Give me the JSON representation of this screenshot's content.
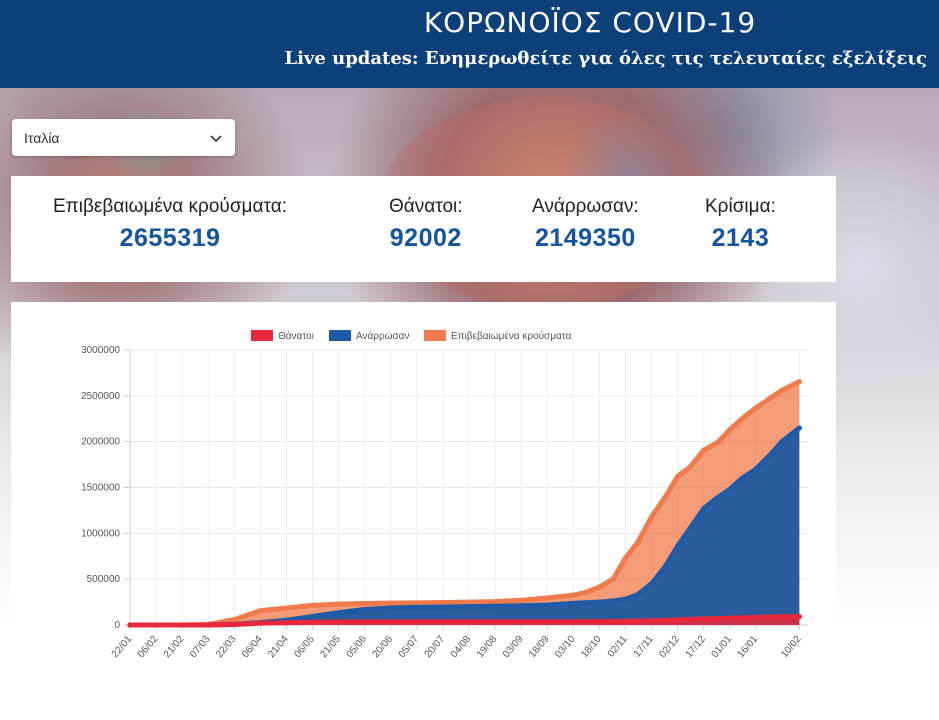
{
  "header": {
    "title": "ΚΟΡΩΝΟΪΟΣ COVID-19",
    "subtitle": "Live updates: Ενημερωθείτε για όλες τις τελευταίες εξελίξεις"
  },
  "country_select": {
    "value": "Ιταλία",
    "icon": "chevron-down-icon"
  },
  "stats": {
    "confirmed_label": "Επιβεβαιωμένα κρούσματα:",
    "confirmed_value": "2655319",
    "deaths_label": "Θάνατοι:",
    "deaths_value": "92002",
    "recovered_label": "Ανάρρωσαν:",
    "recovered_value": "2149350",
    "critical_label": "Κρίσιμα:",
    "critical_value": "2143"
  },
  "colors": {
    "header_bg": "#0d3f78",
    "value_blue": "#1454a0",
    "deaths": "#e8283a",
    "recovered": "#1f5aa6",
    "confirmed": "#f07a4b"
  },
  "chart_data": {
    "type": "area",
    "legend": [
      "Θάνατοι",
      "Ανάρρωσαν",
      "Επιβεβαιωμένα κρούσματα"
    ],
    "ylim": [
      0,
      3000000
    ],
    "yticks": [
      "3000000",
      "2500000",
      "2000000",
      "1500000",
      "1000000",
      "500000",
      "0"
    ],
    "x_tick_labels": [
      "22/01",
      "06/02",
      "21/02",
      "07/03",
      "22/03",
      "06/04",
      "21/04",
      "06/05",
      "21/05",
      "05/06",
      "20/06",
      "05/07",
      "20/07",
      "04/08",
      "19/08",
      "03/09",
      "18/09",
      "03/10",
      "18/10",
      "02/11",
      "17/11",
      "02/12",
      "17/12",
      "01/01",
      "16/01",
      "10/02"
    ],
    "x_days": [
      0,
      15,
      30,
      45,
      60,
      75,
      90,
      105,
      120,
      135,
      150,
      165,
      180,
      195,
      210,
      225,
      240,
      255,
      270,
      285,
      300,
      315,
      330,
      345,
      360,
      385
    ],
    "series": [
      {
        "name": "Επιβεβαιωμένα κρούσματα",
        "x": [
          0,
          30,
          45,
          60,
          75,
          90,
          105,
          120,
          135,
          150,
          165,
          180,
          195,
          210,
          225,
          240,
          255,
          262,
          270,
          278,
          285,
          292,
          300,
          308,
          315,
          322,
          330,
          338,
          345,
          352,
          360,
          368,
          375,
          385
        ],
        "values": [
          0,
          20,
          5883,
          59138,
          156363,
          183957,
          214457,
          227364,
          234013,
          238159,
          241611,
          245032,
          249204,
          255278,
          269214,
          294932,
          325329,
          354950,
          414241,
          502000,
          731588,
          900000,
          1178529,
          1400000,
          1620901,
          1720000,
          1906377,
          1990000,
          2129376,
          2250000,
          2368733,
          2470000,
          2560000,
          2655319
        ]
      },
      {
        "name": "Ανάρρωσαν",
        "x": [
          0,
          30,
          45,
          60,
          75,
          90,
          105,
          120,
          135,
          150,
          165,
          180,
          195,
          210,
          225,
          240,
          255,
          262,
          270,
          278,
          285,
          292,
          300,
          308,
          315,
          322,
          330,
          338,
          345,
          352,
          360,
          368,
          375,
          385
        ],
        "values": [
          0,
          0,
          622,
          7024,
          26491,
          51600,
          93245,
          134560,
          168646,
          185292,
          192241,
          196806,
          200229,
          204960,
          209610,
          218351,
          235303,
          243000,
          250000,
          262000,
          281000,
          330000,
          450000,
          640000,
          860000,
          1050000,
          1270000,
          1390000,
          1479000,
          1600000,
          1700000,
          1850000,
          2000000,
          2149350
        ]
      },
      {
        "name": "Θάνατοι",
        "x": [
          0,
          30,
          45,
          60,
          75,
          90,
          105,
          120,
          135,
          150,
          165,
          180,
          195,
          210,
          225,
          240,
          255,
          262,
          270,
          278,
          285,
          292,
          300,
          308,
          315,
          322,
          330,
          338,
          345,
          352,
          360,
          368,
          375,
          385
        ],
        "values": [
          0,
          0,
          233,
          5476,
          19899,
          24648,
          29684,
          32486,
          33774,
          34657,
          34869,
          35102,
          35187,
          35400,
          35507,
          35738,
          36030,
          36200,
          36705,
          37700,
          39412,
          42000,
          45733,
          50000,
          56361,
          61000,
          66537,
          70000,
          74621,
          78000,
          82177,
          86000,
          89000,
          92002
        ]
      }
    ]
  }
}
